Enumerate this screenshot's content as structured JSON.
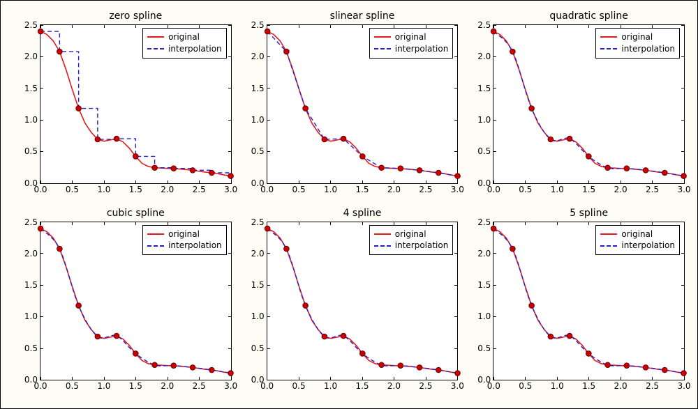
{
  "background_color": "#fdfdf5",
  "plot_bg": "#ffffff",
  "axis_color": "#000000",
  "grid": {
    "rows": 2,
    "cols": 3
  },
  "xlim": [
    0.0,
    3.0
  ],
  "ylim": [
    0.0,
    2.5
  ],
  "xticks": [
    0.0,
    0.5,
    1.0,
    1.5,
    2.0,
    2.5,
    3.0
  ],
  "yticks": [
    0.0,
    0.5,
    1.0,
    1.5,
    2.0,
    2.5
  ],
  "xtick_labels": [
    "0.0",
    "0.5",
    "1.0",
    "1.5",
    "2.0",
    "2.5",
    "3.0"
  ],
  "ytick_labels": [
    "0.0",
    "0.5",
    "1.0",
    "1.5",
    "2.0",
    "2.5"
  ],
  "tick_fontsize": 12,
  "title_fontsize": 14,
  "sample_points": {
    "x": [
      0.0,
      0.3,
      0.6,
      0.9,
      1.2,
      1.5,
      1.8,
      2.1,
      2.4,
      2.7,
      3.0
    ],
    "y": [
      2.4,
      2.08,
      1.18,
      0.69,
      0.7,
      0.42,
      0.24,
      0.23,
      0.2,
      0.16,
      0.11
    ]
  },
  "marker": {
    "color": "#cc0000",
    "edge": "#660000",
    "radius": 3.8,
    "edge_width": 1.0
  },
  "original_curve": {
    "color": "#e41a1c",
    "width": 1.6,
    "style": "solid",
    "x": [
      0.0,
      0.1,
      0.2,
      0.3,
      0.4,
      0.5,
      0.6,
      0.7,
      0.8,
      0.9,
      1.0,
      1.1,
      1.2,
      1.3,
      1.4,
      1.5,
      1.6,
      1.7,
      1.8,
      1.9,
      2.0,
      2.1,
      2.2,
      2.3,
      2.4,
      2.5,
      2.6,
      2.7,
      2.8,
      2.9,
      3.0
    ],
    "y": [
      2.4,
      2.35,
      2.25,
      2.08,
      1.8,
      1.48,
      1.18,
      0.95,
      0.8,
      0.69,
      0.66,
      0.68,
      0.7,
      0.65,
      0.55,
      0.42,
      0.31,
      0.26,
      0.24,
      0.235,
      0.23,
      0.225,
      0.22,
      0.21,
      0.2,
      0.185,
      0.17,
      0.16,
      0.145,
      0.125,
      0.11
    ]
  },
  "interp_style": {
    "color": "#1f1fcc",
    "width": 1.4,
    "dash": "6,4"
  },
  "legend": {
    "items": [
      {
        "label": "original",
        "color": "#e41a1c",
        "dash": "none"
      },
      {
        "label": "interpolation",
        "color": "#1f1fcc",
        "dash": "6,4"
      }
    ],
    "position": "top-right",
    "fontsize": 12
  },
  "subplots": [
    {
      "title": "zero spline",
      "interp": "zero"
    },
    {
      "title": "slinear spline",
      "interp": "linear"
    },
    {
      "title": "quadratic spline",
      "interp": "smooth"
    },
    {
      "title": "cubic spline",
      "interp": "smooth"
    },
    {
      "title": "4 spline",
      "interp": "smooth"
    },
    {
      "title": "5 spline",
      "interp": "smooth"
    }
  ]
}
